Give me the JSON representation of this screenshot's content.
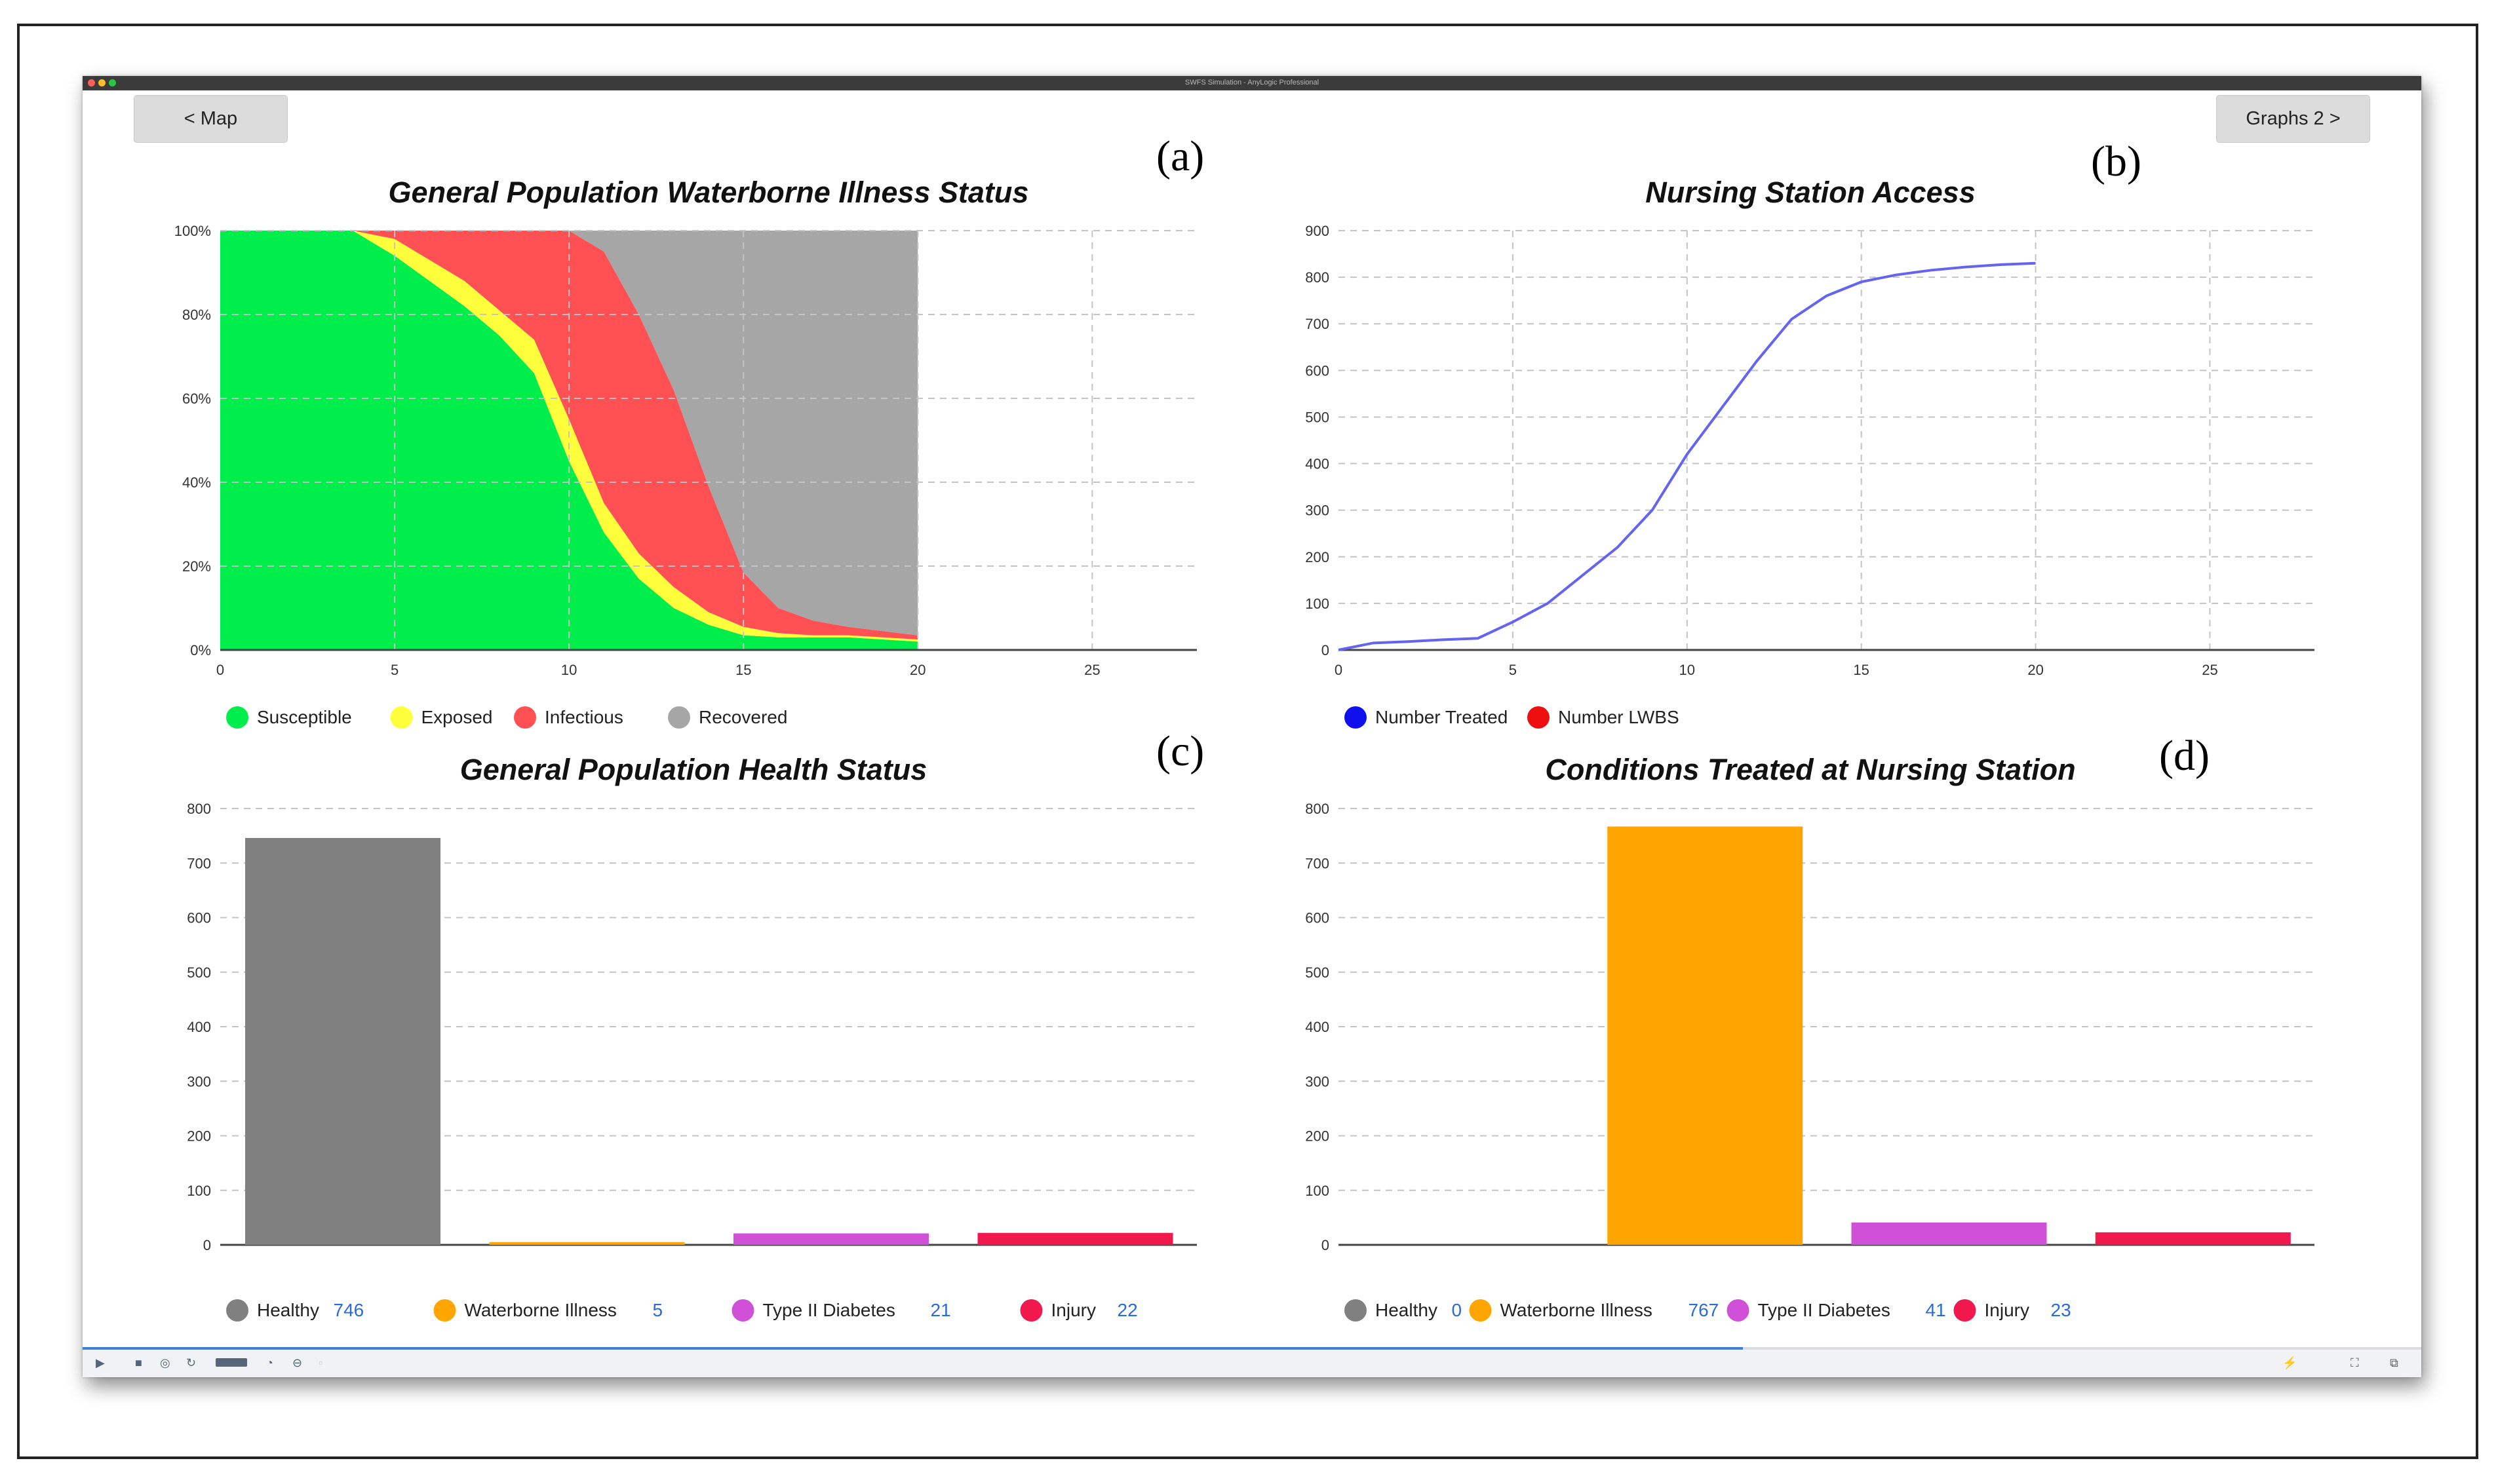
{
  "window": {
    "title": "SWFS Simulation - AnyLogic Professional",
    "map_button": "< Map",
    "graphs_button": "Graphs 2 >"
  },
  "labels": {
    "a": "(a)",
    "b": "(b)",
    "c": "(c)",
    "d": "(d)"
  },
  "colors": {
    "susceptible": "#00ee4c",
    "exposed": "#ffff3c",
    "infectious": "#ff5054",
    "recovered": "#a6a6a6",
    "line": "#6464f0",
    "healthy": "#808080",
    "waterborne": "#ffa500",
    "diabetes": "#d050d8",
    "injury": "#f0184c",
    "value_blue": "#2a6bd8"
  },
  "simulation": {
    "progress": 0.71
  },
  "chart_data": [
    {
      "id": "a",
      "type": "area",
      "stacked": true,
      "title": "General Population Waterborne Illness Status",
      "xlim": [
        0,
        28
      ],
      "ylim": [
        0,
        100
      ],
      "x_ticks": [
        "0",
        "5",
        "10",
        "15",
        "20",
        "25"
      ],
      "y_ticks": [
        "0%",
        "20%",
        "40%",
        "60%",
        "80%",
        "100%"
      ],
      "x": [
        0,
        3.8,
        5,
        6,
        7,
        8,
        9,
        10,
        11,
        12,
        13,
        14,
        15,
        16,
        17,
        18,
        19,
        20
      ],
      "series": [
        {
          "name": "Susceptible",
          "values": [
            100,
            100,
            94,
            88,
            82,
            75,
            66,
            45,
            28,
            17,
            10,
            6,
            3.5,
            3,
            3,
            3,
            2.5,
            2
          ]
        },
        {
          "name": "Exposed",
          "values": [
            0,
            0,
            4,
            5,
            6,
            6,
            8,
            10,
            7,
            6,
            5,
            3,
            2,
            1,
            0.5,
            0.5,
            0.5,
            0.5
          ]
        },
        {
          "name": "Infectious",
          "values": [
            0,
            0,
            2,
            7,
            12,
            19,
            26,
            45,
            60,
            57,
            47,
            30,
            13,
            6,
            3.5,
            2,
            1.5,
            1
          ]
        },
        {
          "name": "Recovered",
          "values": [
            0,
            0,
            0,
            0,
            0,
            0,
            0,
            0,
            5,
            20,
            38,
            61,
            81.5,
            90,
            93,
            94.5,
            95.5,
            96.5
          ]
        }
      ]
    },
    {
      "id": "b",
      "type": "line",
      "title": "Nursing Station Access",
      "xlim": [
        0,
        28
      ],
      "ylim": [
        0,
        900
      ],
      "x_ticks": [
        "0",
        "5",
        "10",
        "15",
        "20",
        "25"
      ],
      "y_ticks": [
        "0",
        "100",
        "200",
        "300",
        "400",
        "500",
        "600",
        "700",
        "800",
        "900"
      ],
      "series": [
        {
          "name": "Number Treated",
          "x": [
            0,
            1,
            2,
            3,
            4,
            5,
            6,
            7,
            8,
            9,
            10,
            11,
            12,
            13,
            14,
            15,
            16,
            17,
            18,
            19,
            20
          ],
          "values": [
            0,
            15,
            18,
            22,
            25,
            60,
            100,
            160,
            220,
            300,
            420,
            520,
            620,
            710,
            760,
            790,
            805,
            815,
            822,
            827,
            830
          ]
        },
        {
          "name": "Number LWBS",
          "x": [],
          "values": []
        }
      ]
    },
    {
      "id": "c",
      "type": "bar",
      "title": "General Population Health Status",
      "ylim": [
        0,
        800
      ],
      "y_ticks": [
        "0",
        "100",
        "200",
        "300",
        "400",
        "500",
        "600",
        "700",
        "800"
      ],
      "categories": [
        "Healthy",
        "Waterborne Illness",
        "Type II Diabetes",
        "Injury"
      ],
      "values": [
        746,
        5,
        21,
        22
      ]
    },
    {
      "id": "d",
      "type": "bar",
      "title": "Conditions Treated at Nursing Station",
      "ylim": [
        0,
        800
      ],
      "y_ticks": [
        "0",
        "100",
        "200",
        "300",
        "400",
        "500",
        "600",
        "700",
        "800"
      ],
      "categories": [
        "Healthy",
        "Waterborne Illness",
        "Type II Diabetes",
        "Injury"
      ],
      "values": [
        0,
        767,
        41,
        23
      ]
    }
  ]
}
